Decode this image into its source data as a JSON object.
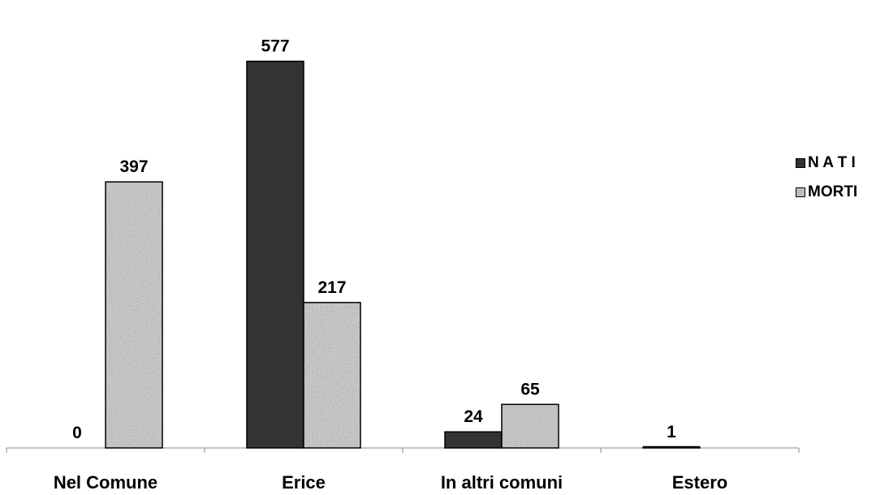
{
  "chart_data": {
    "type": "bar",
    "categories": [
      "Nel Comune",
      "Erice",
      "In altri comuni",
      "Estero"
    ],
    "series": [
      {
        "name": "N A T I",
        "values": [
          0,
          577,
          24,
          1
        ],
        "color": "#333333"
      },
      {
        "name": "MORTI",
        "values": [
          397,
          217,
          65,
          0
        ],
        "color": "#bdbdbd",
        "pattern": "granite"
      }
    ],
    "ylim": [
      0,
      620
    ],
    "grid": false,
    "legend": "right",
    "data_labels": true
  }
}
